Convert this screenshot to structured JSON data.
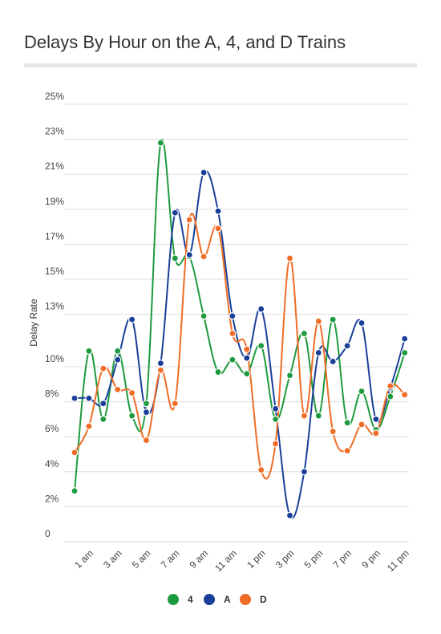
{
  "chart_data": {
    "type": "line",
    "title": "Delays By Hour on the A, 4, and D Trains",
    "xlabel": "",
    "ylabel": "Delay Rate",
    "ylim": [
      0,
      25
    ],
    "y_ticks": [
      {
        "value": 0,
        "label": "0"
      },
      {
        "value": 2,
        "label": "2%"
      },
      {
        "value": 4,
        "label": "4%"
      },
      {
        "value": 6,
        "label": "6%"
      },
      {
        "value": 8,
        "label": "8%"
      },
      {
        "value": 10,
        "label": "10%"
      },
      {
        "value": 13,
        "label": "13%"
      },
      {
        "value": 15,
        "label": "15%"
      },
      {
        "value": 17,
        "label": "17%"
      },
      {
        "value": 19,
        "label": "19%"
      },
      {
        "value": 21,
        "label": "21%"
      },
      {
        "value": 23,
        "label": "23%"
      },
      {
        "value": 25,
        "label": "25%"
      }
    ],
    "categories": [
      "12 am",
      "1 am",
      "2 am",
      "3 am",
      "4 am",
      "5 am",
      "6 am",
      "7 am",
      "8 am",
      "9 am",
      "10 am",
      "11 am",
      "12 pm",
      "1 pm",
      "2 pm",
      "3 pm",
      "4 pm",
      "5 pm",
      "6 pm",
      "7 pm",
      "8 pm",
      "9 pm",
      "10 pm",
      "11 pm"
    ],
    "x_tick_labels": [
      "1 am",
      "3 am",
      "5 am",
      "7 am",
      "9 am",
      "11 am",
      "1 pm",
      "3 pm",
      "5 pm",
      "7 pm",
      "9 pm",
      "11 pm"
    ],
    "legend_position": "bottom",
    "grid": true,
    "series": [
      {
        "name": "4",
        "color": "#1e9a3e",
        "values": [
          2.9,
          10.9,
          7.0,
          10.9,
          7.2,
          7.9,
          22.8,
          16.2,
          16.3,
          12.9,
          9.7,
          10.4,
          9.6,
          11.2,
          7.0,
          9.5,
          11.9,
          7.2,
          12.7,
          6.8,
          8.6,
          6.4,
          8.3,
          10.8
        ]
      },
      {
        "name": "A",
        "color": "#1a3f99",
        "values": [
          8.2,
          8.2,
          7.9,
          10.4,
          12.7,
          7.4,
          10.2,
          18.8,
          16.4,
          21.1,
          18.9,
          12.9,
          10.5,
          13.3,
          7.6,
          1.5,
          4.0,
          10.8,
          10.3,
          11.2,
          12.5,
          7.0,
          8.8,
          11.6
        ]
      },
      {
        "name": "D",
        "color": "#ef6d26",
        "values": [
          5.1,
          6.6,
          9.9,
          8.7,
          8.5,
          5.8,
          9.8,
          7.9,
          18.4,
          16.3,
          17.9,
          11.9,
          11.0,
          4.1,
          5.6,
          16.2,
          7.2,
          12.6,
          6.3,
          5.2,
          6.7,
          6.2,
          8.9,
          8.4
        ]
      }
    ]
  }
}
